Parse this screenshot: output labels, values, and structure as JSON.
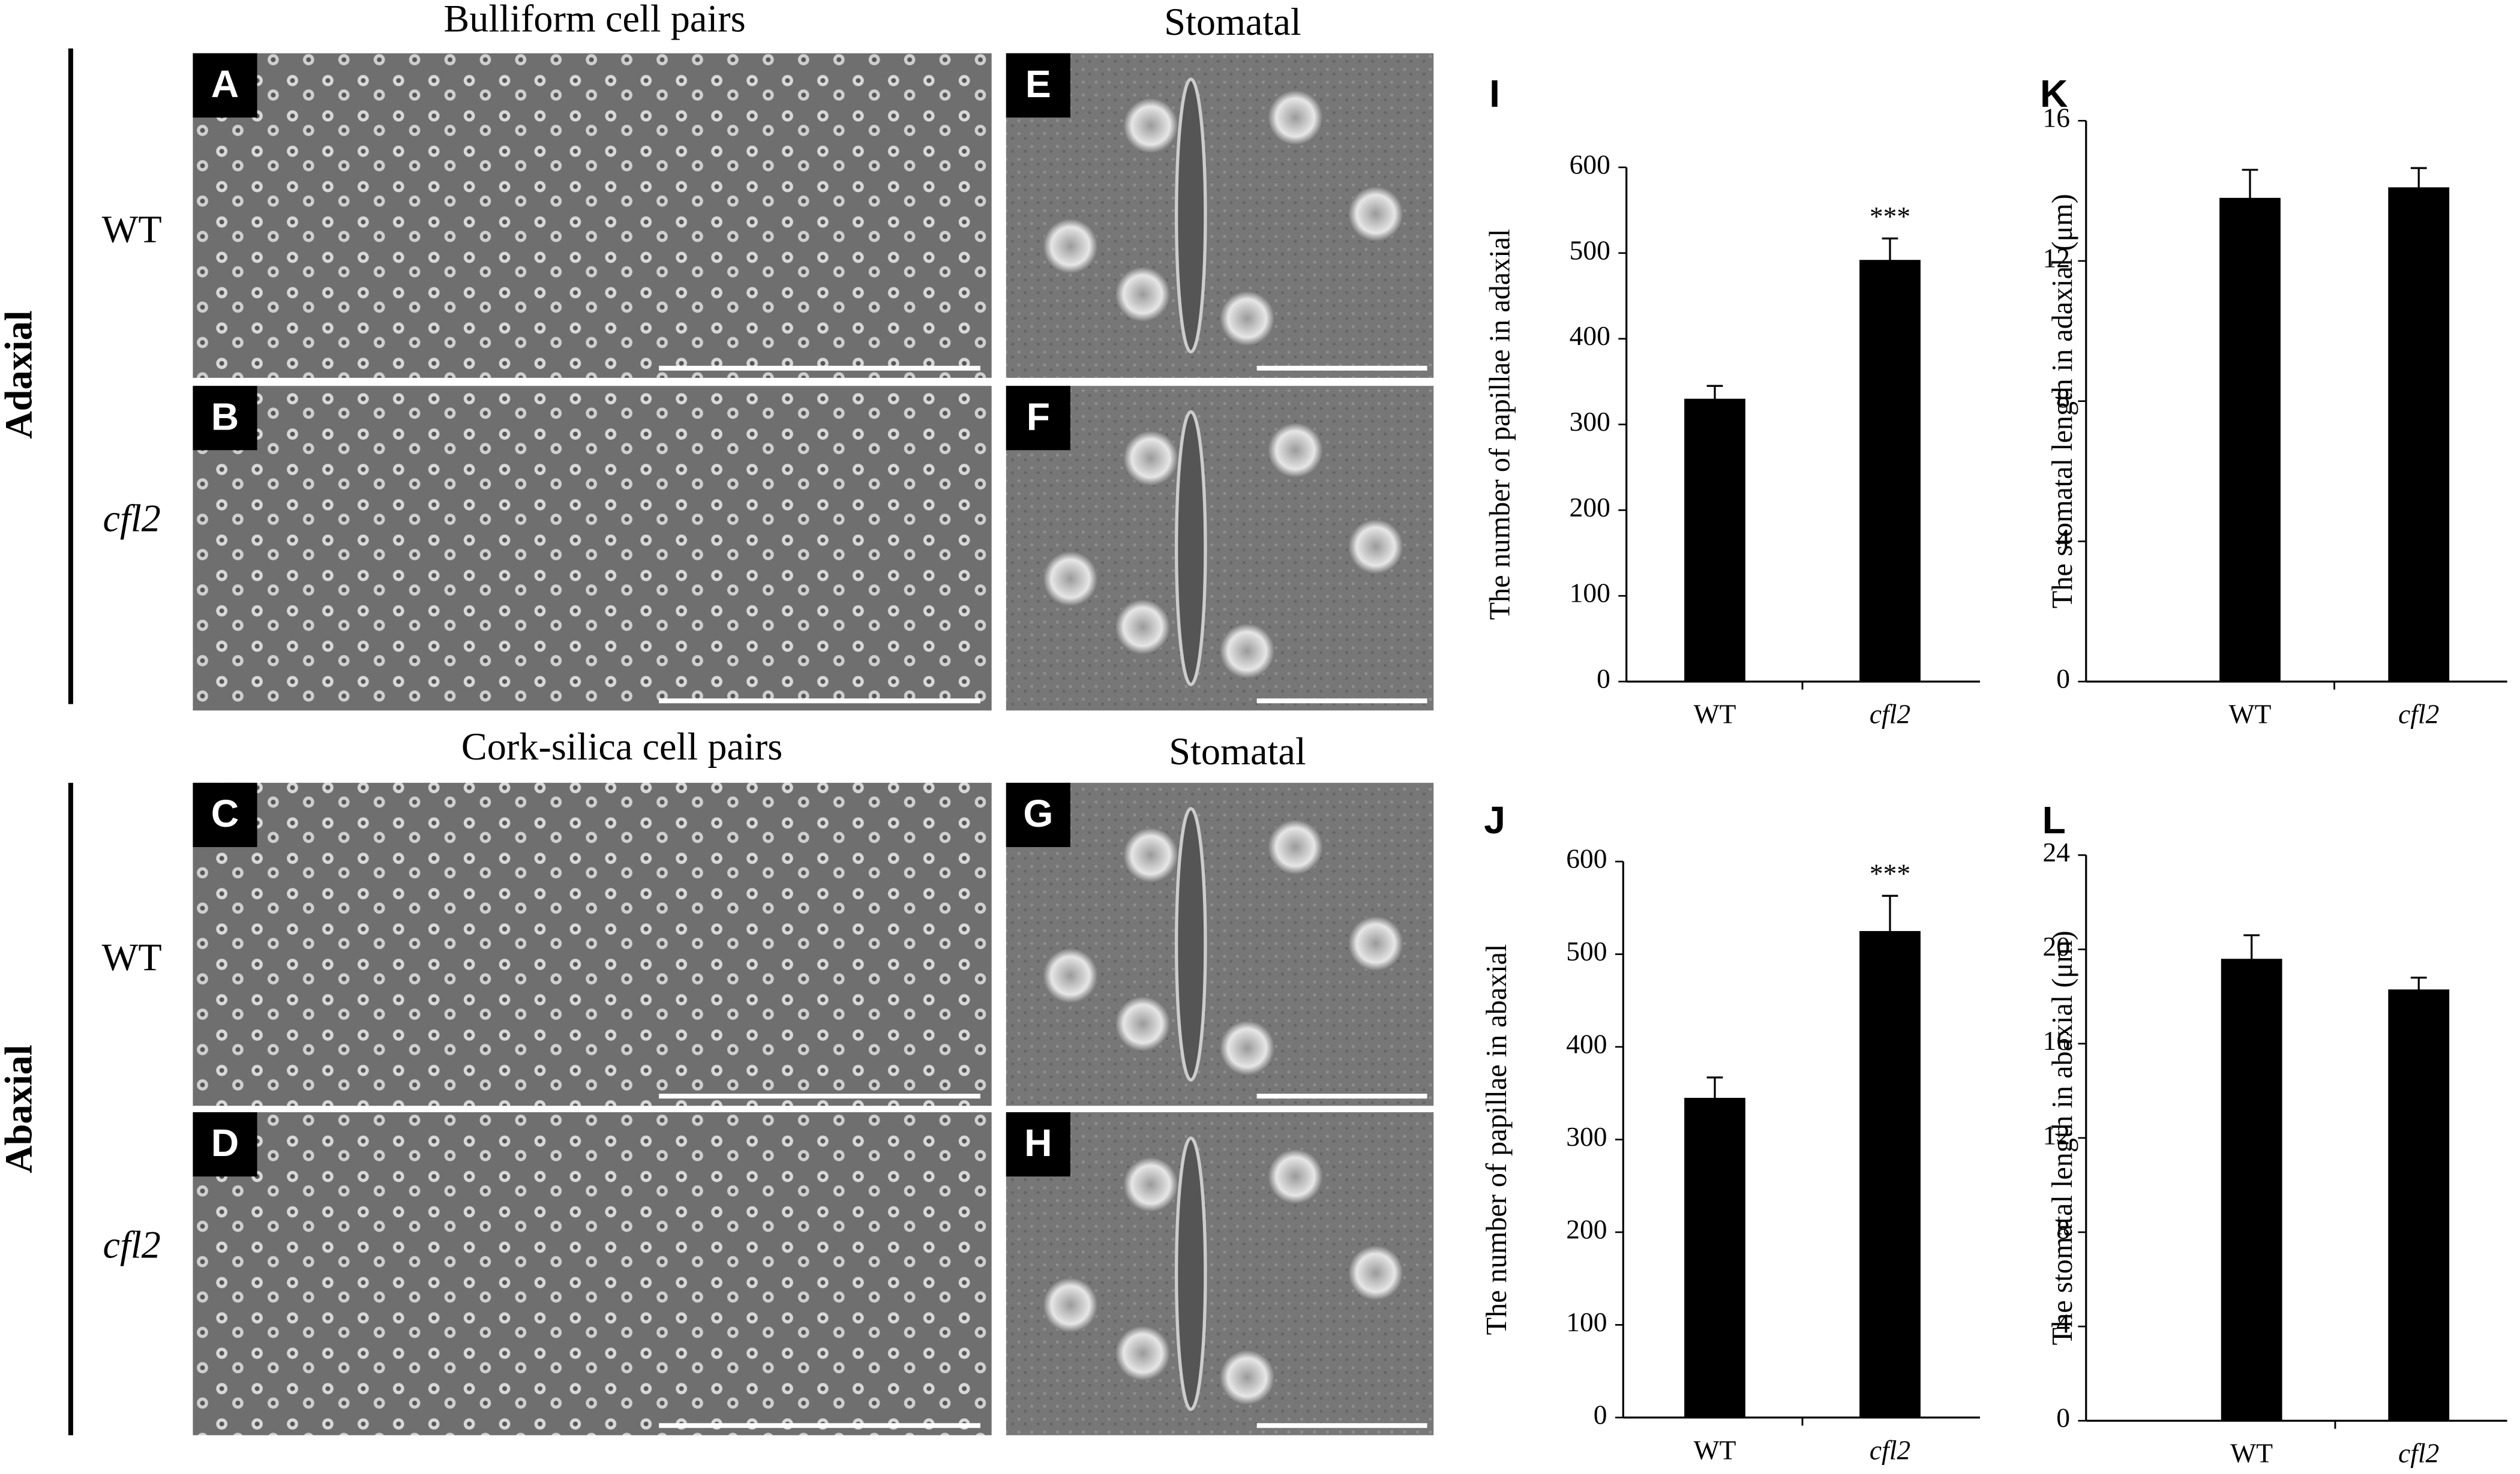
{
  "figure": {
    "adaxial": {
      "label": "Adaxial",
      "left_title": "Bulliform cell pairs",
      "right_title": "Stomatal",
      "rows": [
        {
          "genotype": "WT",
          "panels": [
            "A",
            "E"
          ]
        },
        {
          "genotype": "cfl2",
          "panels": [
            "B",
            "F"
          ]
        }
      ]
    },
    "abaxial": {
      "label": "Abaxial",
      "left_title": "Cork-silica cell pairs",
      "right_title": "Stomatal",
      "rows": [
        {
          "genotype": "WT",
          "panels": [
            "C",
            "G"
          ]
        },
        {
          "genotype": "cfl2",
          "panels": [
            "D",
            "H"
          ]
        }
      ]
    }
  },
  "chart_data": [
    {
      "type": "bar",
      "label": "I",
      "y_label": "The number of papillae  in adaxial",
      "categories": [
        "WT",
        "cfl2"
      ],
      "values": [
        330,
        492
      ],
      "errors": [
        15,
        25
      ],
      "significance": [
        null,
        "***"
      ],
      "color": "#000000",
      "ylim": [
        0,
        600
      ],
      "yticks": [
        0,
        100,
        200,
        300,
        400,
        500,
        600
      ]
    },
    {
      "type": "bar",
      "label": "K",
      "y_label": "The stomatal length in adaxial (μm)",
      "categories": [
        "WT",
        "cfl2"
      ],
      "values": [
        13.8,
        14.1
      ],
      "errors": [
        0.8,
        0.55
      ],
      "color": "#000000",
      "ylim": [
        0,
        16
      ],
      "yticks": [
        0,
        4,
        8,
        12,
        16
      ]
    },
    {
      "type": "bar",
      "label": "J",
      "y_label": "The number of papillae  in abaxial",
      "categories": [
        "WT",
        "cfl2"
      ],
      "values": [
        345,
        525
      ],
      "errors": [
        22,
        38
      ],
      "significance": [
        null,
        "***"
      ],
      "color": "#000000",
      "ylim": [
        0,
        600
      ],
      "yticks": [
        0,
        100,
        200,
        300,
        400,
        500,
        600
      ]
    },
    {
      "type": "bar",
      "label": "L",
      "y_label": "The stomatal length in abaxial (μm)",
      "categories": [
        "WT",
        "cfl2"
      ],
      "values": [
        19.6,
        18.3
      ],
      "errors": [
        1.0,
        0.5
      ],
      "color": "#000000",
      "ylim": [
        0,
        24
      ],
      "yticks": [
        0,
        4,
        8,
        12,
        16,
        20,
        24
      ]
    }
  ]
}
